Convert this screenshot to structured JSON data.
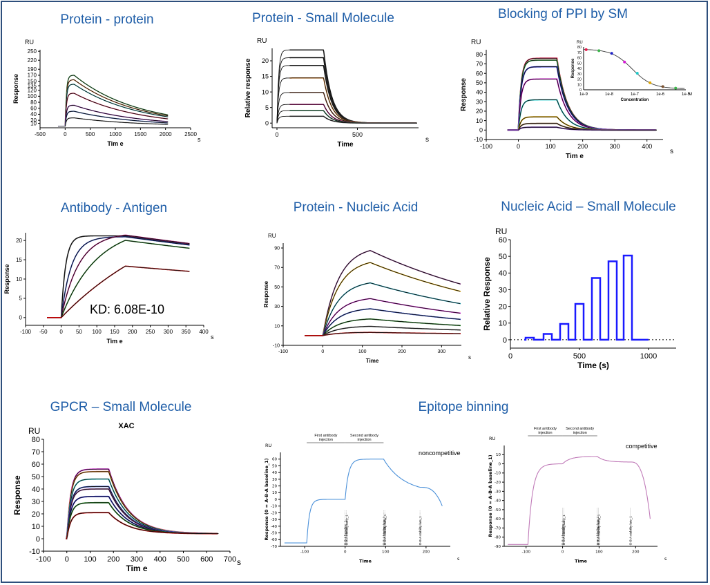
{
  "colors": {
    "title": "#1f5ea8",
    "fit": "#111111",
    "inset": "#333333"
  },
  "chart_data": [
    {
      "type": "line",
      "title": "Protein - protein",
      "ylabel": "Response",
      "y_unit": "RU",
      "xlabel": "Tim e",
      "x_unit": "s",
      "xlim": [
        -500,
        2500
      ],
      "ylim": [
        -5,
        255
      ],
      "x_ticks": [
        -500,
        0,
        500,
        1000,
        1500,
        2000,
        2500
      ],
      "y_ticks": [
        10,
        20,
        40,
        60,
        80,
        100,
        120,
        135,
        150,
        170,
        190,
        220,
        250
      ],
      "kinetics": {
        "inj_start": 0,
        "inj_end": 180,
        "t_end": 2050,
        "kon": 0.04,
        "koff": 0.0008
      },
      "series": [
        {
          "color": "#3cb44b",
          "plateau": 170
        },
        {
          "color": "#f58231",
          "plateau": 155
        },
        {
          "color": "#2ec4c4",
          "plateau": 140
        },
        {
          "color": "#e6194b",
          "plateau": 110
        },
        {
          "color": "#911eb4",
          "plateau": 70
        },
        {
          "color": "#1f4fb4",
          "plateau": 50
        },
        {
          "color": "#808080",
          "plateau": 28
        }
      ]
    },
    {
      "type": "line",
      "title": "Protein -  Small Molecule",
      "ylabel": "Relative response",
      "y_unit": "RU",
      "xlabel": "Time",
      "x_unit": "s",
      "xlim": [
        -30,
        880
      ],
      "ylim": [
        -1.5,
        24
      ],
      "x_ticks": [
        0,
        500
      ],
      "y_ticks": [
        0,
        5,
        10,
        15,
        20
      ],
      "kinetics": {
        "inj_start": 0,
        "inj_end": 290,
        "t_end": 870,
        "kon": 0.1,
        "koff": 0.02
      },
      "series": [
        {
          "color": "#333333",
          "plateau": 23.5
        },
        {
          "color": "#333333",
          "plateau": 21
        },
        {
          "color": "#333333",
          "plateau": 18.5
        },
        {
          "color": "#e08020",
          "plateau": 14.5
        },
        {
          "color": "#a0522d",
          "plateau": 9.8
        },
        {
          "color": "#c71585",
          "plateau": 6
        },
        {
          "color": "#2e8b57",
          "plateau": 4
        },
        {
          "color": "#555555",
          "plateau": 2.2
        }
      ]
    },
    {
      "type": "line",
      "title": "Blocking of PPI by SM",
      "ylabel": "Response",
      "y_unit": "RU",
      "xlabel": "Tim e",
      "x_unit": "s",
      "xlim": [
        -100,
        450
      ],
      "ylim": [
        -10,
        85
      ],
      "x_ticks": [
        -100,
        0,
        100,
        200,
        300,
        400
      ],
      "y_ticks": [
        -10,
        0,
        10,
        20,
        30,
        40,
        50,
        60,
        70,
        80
      ],
      "kinetics": {
        "inj_start": 0,
        "inj_end": 120,
        "t_end": 430,
        "kon": 0.12,
        "koff": 0.03
      },
      "series": [
        {
          "color": "#e6194b",
          "plateau": 76
        },
        {
          "color": "#3cb44b",
          "plateau": 74
        },
        {
          "color": "#1f22c8",
          "plateau": 67
        },
        {
          "color": "#d61ad6",
          "plateau": 54
        },
        {
          "color": "#1fc8c8",
          "plateau": 32
        },
        {
          "color": "#e0a800",
          "plateau": 14
        },
        {
          "color": "#7a5230",
          "plateau": 7
        },
        {
          "color": "#6a2ea8",
          "plateau": 3
        }
      ],
      "inset": {
        "type": "scatter",
        "ylabel": "Response",
        "y_unit": "RU",
        "xlabel": "Concentration",
        "x_unit": "M",
        "x_scale": "log",
        "xlim_log10": [
          -9,
          -5
        ],
        "x_tick_labels": [
          "1e-9",
          "1e-8",
          "1e-7",
          "1e-6",
          "1e-5"
        ],
        "ylim": [
          0,
          80
        ],
        "y_ticks": [
          0,
          10,
          20,
          30,
          40,
          50,
          60,
          70,
          80
        ],
        "points": [
          {
            "log10x": -8.9,
            "y": 75,
            "color": "#e6194b"
          },
          {
            "log10x": -8.4,
            "y": 73,
            "color": "#3cb44b"
          },
          {
            "log10x": -7.9,
            "y": 68,
            "color": "#1f22c8"
          },
          {
            "log10x": -7.4,
            "y": 52,
            "color": "#d61ad6"
          },
          {
            "log10x": -6.9,
            "y": 31,
            "color": "#1fc8c8"
          },
          {
            "log10x": -6.4,
            "y": 13,
            "color": "#e0a800"
          },
          {
            "log10x": -5.9,
            "y": 6,
            "color": "#7a5230"
          },
          {
            "log10x": -5.4,
            "y": 3,
            "color": "#3cb44b"
          }
        ]
      }
    },
    {
      "type": "line",
      "title": "Antibody - Antigen",
      "ylabel": "Response",
      "xlabel": "Tim e",
      "x_unit": "s",
      "annotation": "KD: 6.08E-10",
      "xlim": [
        -100,
        400
      ],
      "ylim": [
        -2,
        22
      ],
      "x_ticks": [
        -100,
        -50,
        0,
        50,
        100,
        150,
        200,
        250,
        300,
        350,
        400
      ],
      "y_ticks": [
        0,
        5,
        10,
        15,
        20
      ],
      "kinetics": {
        "inj_start": 0,
        "inj_end": 180,
        "t_end": 360,
        "kon": 0.02,
        "koff": 0.0006
      },
      "series": [
        {
          "color": "#222222",
          "plateau": 21.2,
          "kon": 0.08
        },
        {
          "color": "#1f3fc8",
          "plateau": 21,
          "kon": 0.035
        },
        {
          "color": "#c71585",
          "plateau": 22,
          "kon": 0.02
        },
        {
          "color": "#228b22",
          "plateau": 24,
          "kon": 0.01
        },
        {
          "color": "#c00000",
          "plateau": 32,
          "kon": 0.003
        }
      ]
    },
    {
      "type": "line",
      "title": "Protein - Nucleic Acid",
      "y_unit": "RU",
      "ylabel": "Response",
      "xlabel": "Time",
      "x_unit": "s",
      "xlim": [
        -100,
        350
      ],
      "ylim": [
        -10,
        95
      ],
      "x_ticks": [
        -100,
        0,
        100,
        200,
        300
      ],
      "y_ticks": [
        -10,
        10,
        30,
        50,
        70,
        90
      ],
      "kinetics": {
        "inj_start": 0,
        "inj_end": 120,
        "t_end": 350,
        "kon": 0.025,
        "koff": 0.0022
      },
      "series": [
        {
          "color": "#8b3a8b",
          "plateau": 92
        },
        {
          "color": "#e0a800",
          "plateau": 79
        },
        {
          "color": "#1fb0c8",
          "plateau": 57
        },
        {
          "color": "#d61ad6",
          "plateau": 40
        },
        {
          "color": "#1f3fc8",
          "plateau": 29
        },
        {
          "color": "#228b22",
          "plateau": 18
        },
        {
          "color": "#555555",
          "plateau": 10
        },
        {
          "color": "#c00000",
          "plateau": 3.5
        }
      ]
    },
    {
      "type": "line",
      "title": "Nucleic Acid – Small Molecule",
      "y_unit": "RU",
      "ylabel": "Relative Response",
      "xlabel": "Time (s)",
      "xlim": [
        0,
        1200
      ],
      "ylim": [
        -5,
        60
      ],
      "x_ticks": [
        0,
        500,
        1000
      ],
      "y_ticks": [
        0,
        10,
        20,
        30,
        40,
        50,
        60
      ],
      "series": [
        {
          "color": "#1a1aff",
          "pulses": [
            {
              "start": 110,
              "end": 170,
              "level": 1.2
            },
            {
              "start": 240,
              "end": 300,
              "level": 3.5
            },
            {
              "start": 360,
              "end": 420,
              "level": 9.5
            },
            {
              "start": 470,
              "end": 530,
              "level": 21.5
            },
            {
              "start": 590,
              "end": 650,
              "level": 37
            },
            {
              "start": 710,
              "end": 770,
              "level": 47
            },
            {
              "start": 820,
              "end": 880,
              "level": 50.5
            }
          ],
          "t_end": 1000
        }
      ]
    },
    {
      "type": "line",
      "title": "GPCR – Small Molecule",
      "subtitle": "XAC",
      "y_unit": "RU",
      "ylabel": "Response",
      "xlabel": "Tim e",
      "x_unit": "s",
      "xlim": [
        -100,
        700
      ],
      "ylim": [
        -10,
        80
      ],
      "x_ticks": [
        -100,
        0,
        100,
        200,
        300,
        400,
        500,
        600,
        700
      ],
      "y_ticks": [
        -10,
        0,
        10,
        20,
        30,
        40,
        50,
        60,
        70,
        80
      ],
      "kinetics": {
        "inj_start": 0,
        "inj_end": 180,
        "t_end": 650,
        "kon": 0.06,
        "koff": 0.012,
        "baseline_end": 4
      },
      "series": [
        {
          "color": "#d61ad6",
          "plateau": 56
        },
        {
          "color": "#e08020",
          "plateau": 54
        },
        {
          "color": "#2ec4c4",
          "plateau": 48
        },
        {
          "color": "#1f3fc8",
          "plateau": 42
        },
        {
          "color": "#8b3a8b",
          "plateau": 40
        },
        {
          "color": "#1f22c8",
          "plateau": 34
        },
        {
          "color": "#228b22",
          "plateau": 29
        },
        {
          "color": "#c00000",
          "plateau": 21
        }
      ]
    },
    {
      "type": "line",
      "title": "Epitope binning",
      "panels": [
        {
          "tag": "noncompetitive",
          "y_unit": "RU",
          "ylabel": "Response (0 = A-B-A baseline_1)",
          "xlabel": "Time",
          "x_unit": "s",
          "bracket1": "First antibody injection",
          "bracket2": "Second antibody injection",
          "xlim": [
            -160,
            260
          ],
          "ylim": [
            -70,
            70
          ],
          "x_ticks": [
            -100,
            0,
            100,
            200
          ],
          "y_ticks": [
            -70,
            -60,
            -50,
            -40,
            -30,
            -20,
            -10,
            0,
            10,
            20,
            30,
            40,
            50,
            60
          ],
          "event_labels": [
            "D-B-A baseline_1",
            "D-B-A binding early_1",
            "D-B-A binding late_1",
            "D-B-A stability early_1",
            "D-B-A stability late_1"
          ],
          "color": "#4a90d9",
          "segments": [
            {
              "t0": -150,
              "t1": -95,
              "y0": -65,
              "y1": -65
            },
            {
              "t0": -95,
              "t1": 0,
              "y0": -65,
              "y1": 0,
              "kind": "rise",
              "rate": 0.15
            },
            {
              "t0": 0,
              "t1": 95,
              "y0": 0,
              "y1": 60,
              "kind": "rise",
              "rate": 0.12
            },
            {
              "t0": 95,
              "t1": 185,
              "y0": 60,
              "y1": 18,
              "kind": "decay",
              "rate": 0.02
            },
            {
              "t0": 185,
              "t1": 240,
              "y0": 18,
              "y1": -10,
              "kind": "drop"
            }
          ]
        },
        {
          "tag": "competitive",
          "y_unit": "RU",
          "ylabel": "Response (0 = A-B-A baseline_1)",
          "xlabel": "Time",
          "x_unit": "s",
          "bracket1": "First antibody injection",
          "bracket2": "Second antibody injection",
          "xlim": [
            -160,
            260
          ],
          "ylim": [
            -90,
            20
          ],
          "x_ticks": [
            -100,
            0,
            100,
            200
          ],
          "y_ticks": [
            -90,
            -80,
            -70,
            -60,
            -50,
            -40,
            -30,
            -20,
            -10,
            0,
            10
          ],
          "event_labels": [
            "D-B-A baseline_1",
            "D-B-A binding early_1",
            "D-B-A binding late_1",
            "D-B-A stability early_1",
            "D-B-A stability late_1"
          ],
          "color": "#c07ab8",
          "segments": [
            {
              "t0": -150,
              "t1": -95,
              "y0": -88,
              "y1": -88
            },
            {
              "t0": -95,
              "t1": 0,
              "y0": -88,
              "y1": 0,
              "kind": "rise",
              "rate": 0.08
            },
            {
              "t0": 0,
              "t1": 95,
              "y0": 0,
              "y1": 8,
              "kind": "rise",
              "rate": 0.05
            },
            {
              "t0": 95,
              "t1": 185,
              "y0": 8,
              "y1": 2,
              "kind": "decay",
              "rate": 0.05
            },
            {
              "t0": 185,
              "t1": 240,
              "y0": 2,
              "y1": -60,
              "kind": "drop"
            }
          ]
        }
      ]
    }
  ]
}
